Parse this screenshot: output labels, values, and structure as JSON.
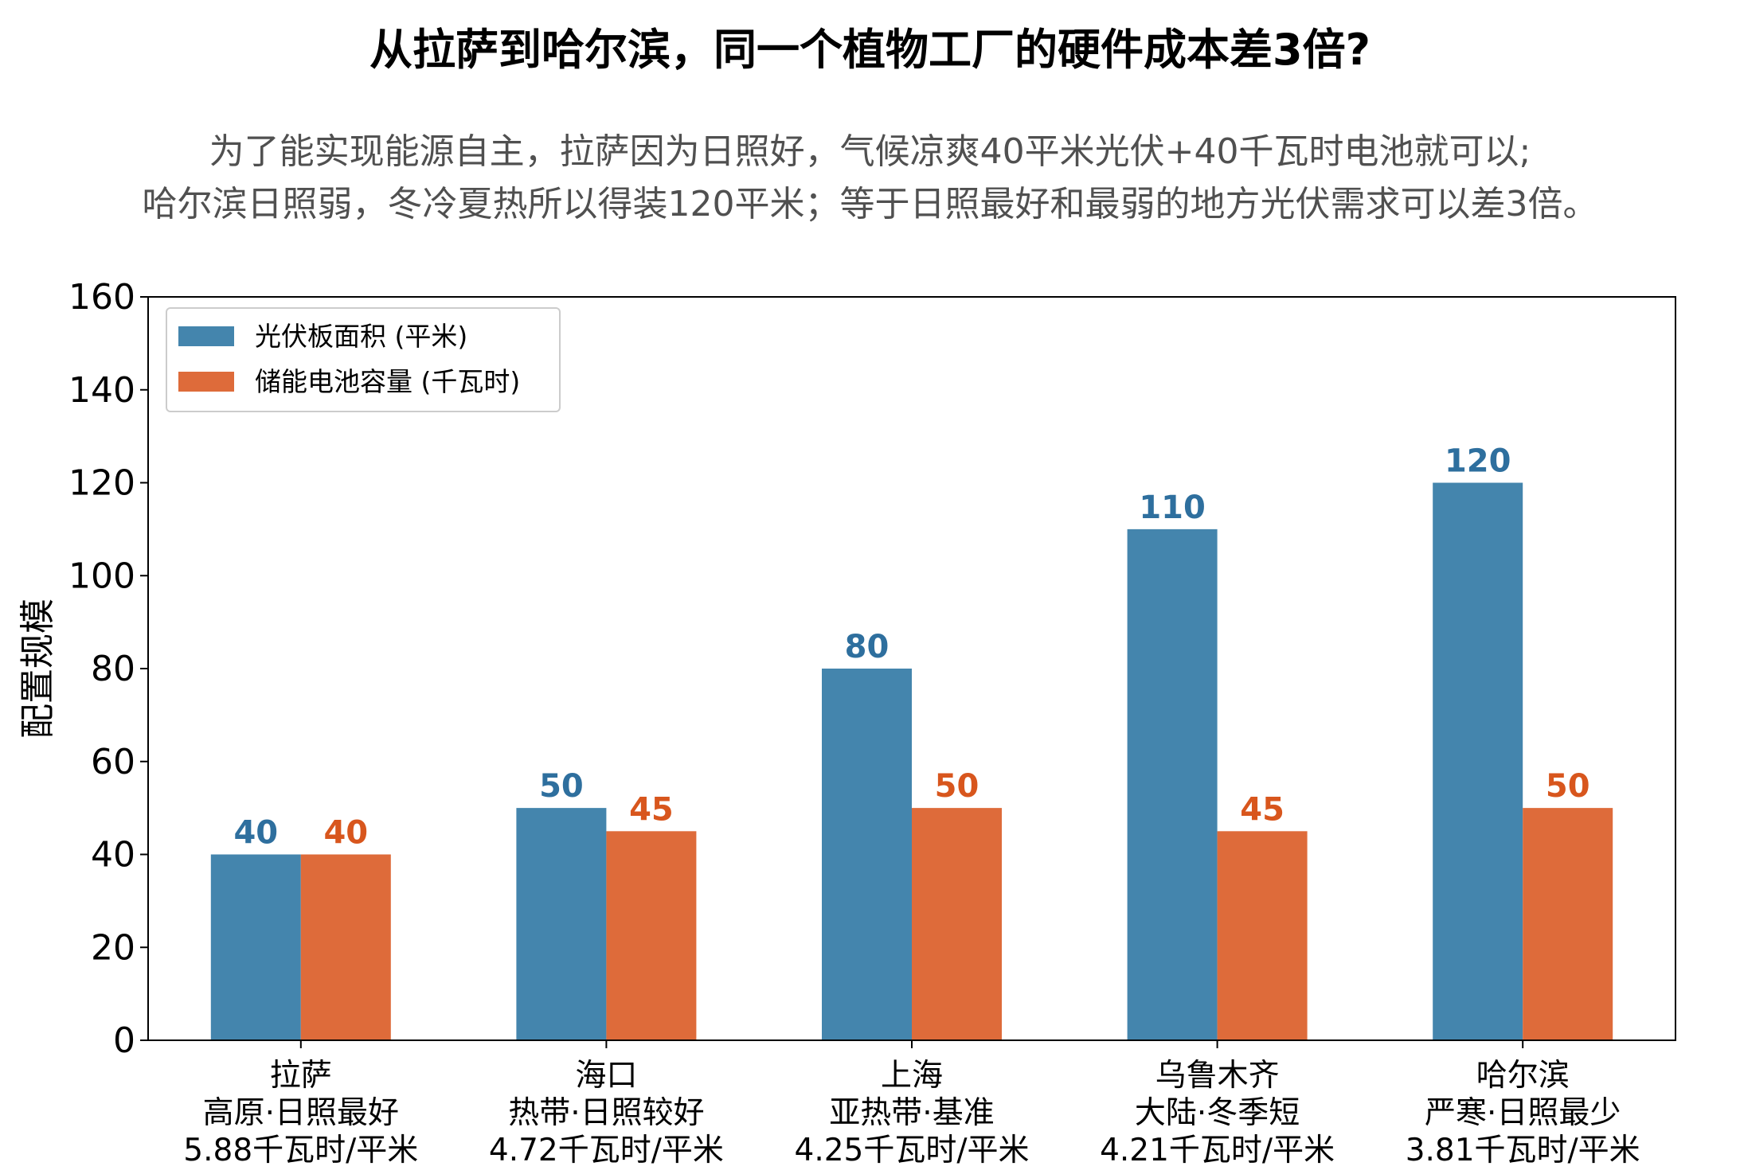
{
  "title": "从拉萨到哈尔滨，同一个植物工厂的硬件成本差3倍?",
  "subtitle": [
    "为了能实现能源自主，拉萨因为日照好，气候凉爽40平米光伏+40千瓦时电池就可以;",
    "哈尔滨日照弱，冬冷夏热所以得装120平米；等于日照最好和最弱的地方光伏需求可以差3倍。"
  ],
  "chart_data": {
    "type": "bar",
    "ylabel": "配置规模",
    "ylim": [
      0,
      160
    ],
    "yticks": [
      0,
      20,
      40,
      60,
      80,
      100,
      120,
      140,
      160
    ],
    "legend_position": "top-left",
    "categories": [
      [
        "拉萨",
        "高原·日照最好",
        "5.88千瓦时/平米"
      ],
      [
        "海口",
        "热带·日照较好",
        "4.72千瓦时/平米"
      ],
      [
        "上海",
        "亚热带·基准",
        "4.25千瓦时/平米"
      ],
      [
        "乌鲁木齐",
        "大陆·冬季短",
        "4.21千瓦时/平米"
      ],
      [
        "哈尔滨",
        "严寒·日照最少",
        "3.81千瓦时/平米"
      ]
    ],
    "series": [
      {
        "name": "光伏板面积 (平米)",
        "color": "#4485AD",
        "label_color": "#2E6F9E",
        "values": [
          40,
          50,
          80,
          110,
          120
        ]
      },
      {
        "name": "储能电池容量 (千瓦时)",
        "color": "#DE6B3A",
        "label_color": "#D8561D",
        "values": [
          40,
          45,
          50,
          45,
          50
        ]
      }
    ]
  }
}
